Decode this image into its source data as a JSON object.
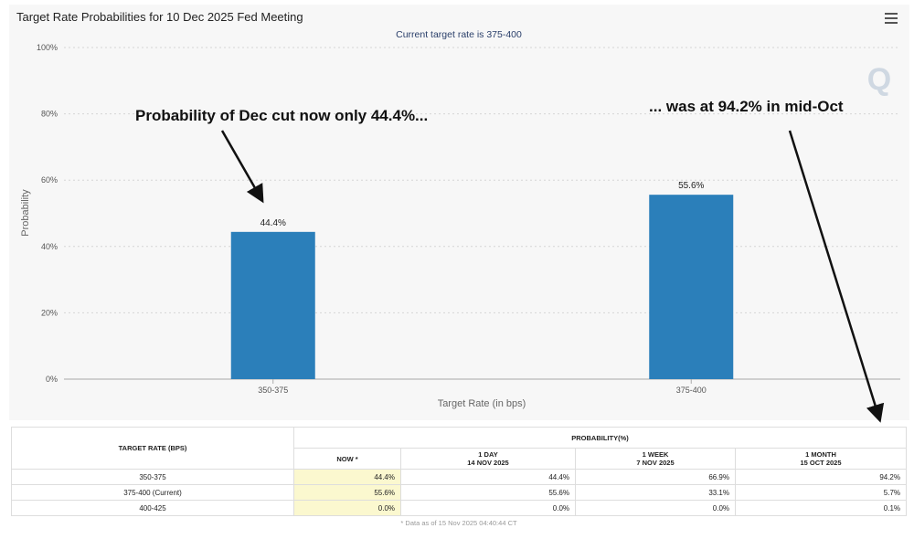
{
  "window": {
    "title": "Target Rate Probabilities for 10 Dec 2025 Fed Meeting",
    "menu_icon": "hamburger-icon"
  },
  "chart_data": {
    "type": "bar",
    "title": "Target Rate Probabilities for 10 Dec 2025 Fed Meeting",
    "subtitle": "Current target rate is 375-400",
    "xlabel": "Target Rate (in bps)",
    "ylabel": "Probability",
    "categories": [
      "350-375",
      "375-400"
    ],
    "values": [
      44.4,
      55.6
    ],
    "data_labels": [
      "44.4%",
      "55.6%"
    ],
    "ylim": [
      0,
      100
    ],
    "yticks": [
      "0%",
      "20%",
      "40%",
      "60%",
      "80%",
      "100%"
    ],
    "grid": true,
    "color": "#2b7fba",
    "watermark": "Q",
    "annotations": [
      {
        "text": "Probability of Dec cut now only 44.4%..."
      },
      {
        "text": "... was at 94.2% in mid-Oct"
      }
    ]
  },
  "table": {
    "rate_header": "TARGET RATE (BPS)",
    "prob_header": "PROBABILITY(%)",
    "columns": [
      {
        "line1": "NOW *",
        "line2": ""
      },
      {
        "line1": "1 DAY",
        "line2": "14 NOV 2025"
      },
      {
        "line1": "1 WEEK",
        "line2": "7 NOV 2025"
      },
      {
        "line1": "1 MONTH",
        "line2": "15 OCT 2025"
      }
    ],
    "rows": [
      {
        "rate": "350-375",
        "values": [
          "44.4%",
          "44.4%",
          "66.9%",
          "94.2%"
        ]
      },
      {
        "rate": "375-400 (Current)",
        "values": [
          "55.6%",
          "55.6%",
          "33.1%",
          "5.7%"
        ]
      },
      {
        "rate": "400-425",
        "values": [
          "0.0%",
          "0.0%",
          "0.0%",
          "0.1%"
        ]
      }
    ],
    "note": "* Data as of 15 Nov 2025 04:40:44 CT"
  }
}
